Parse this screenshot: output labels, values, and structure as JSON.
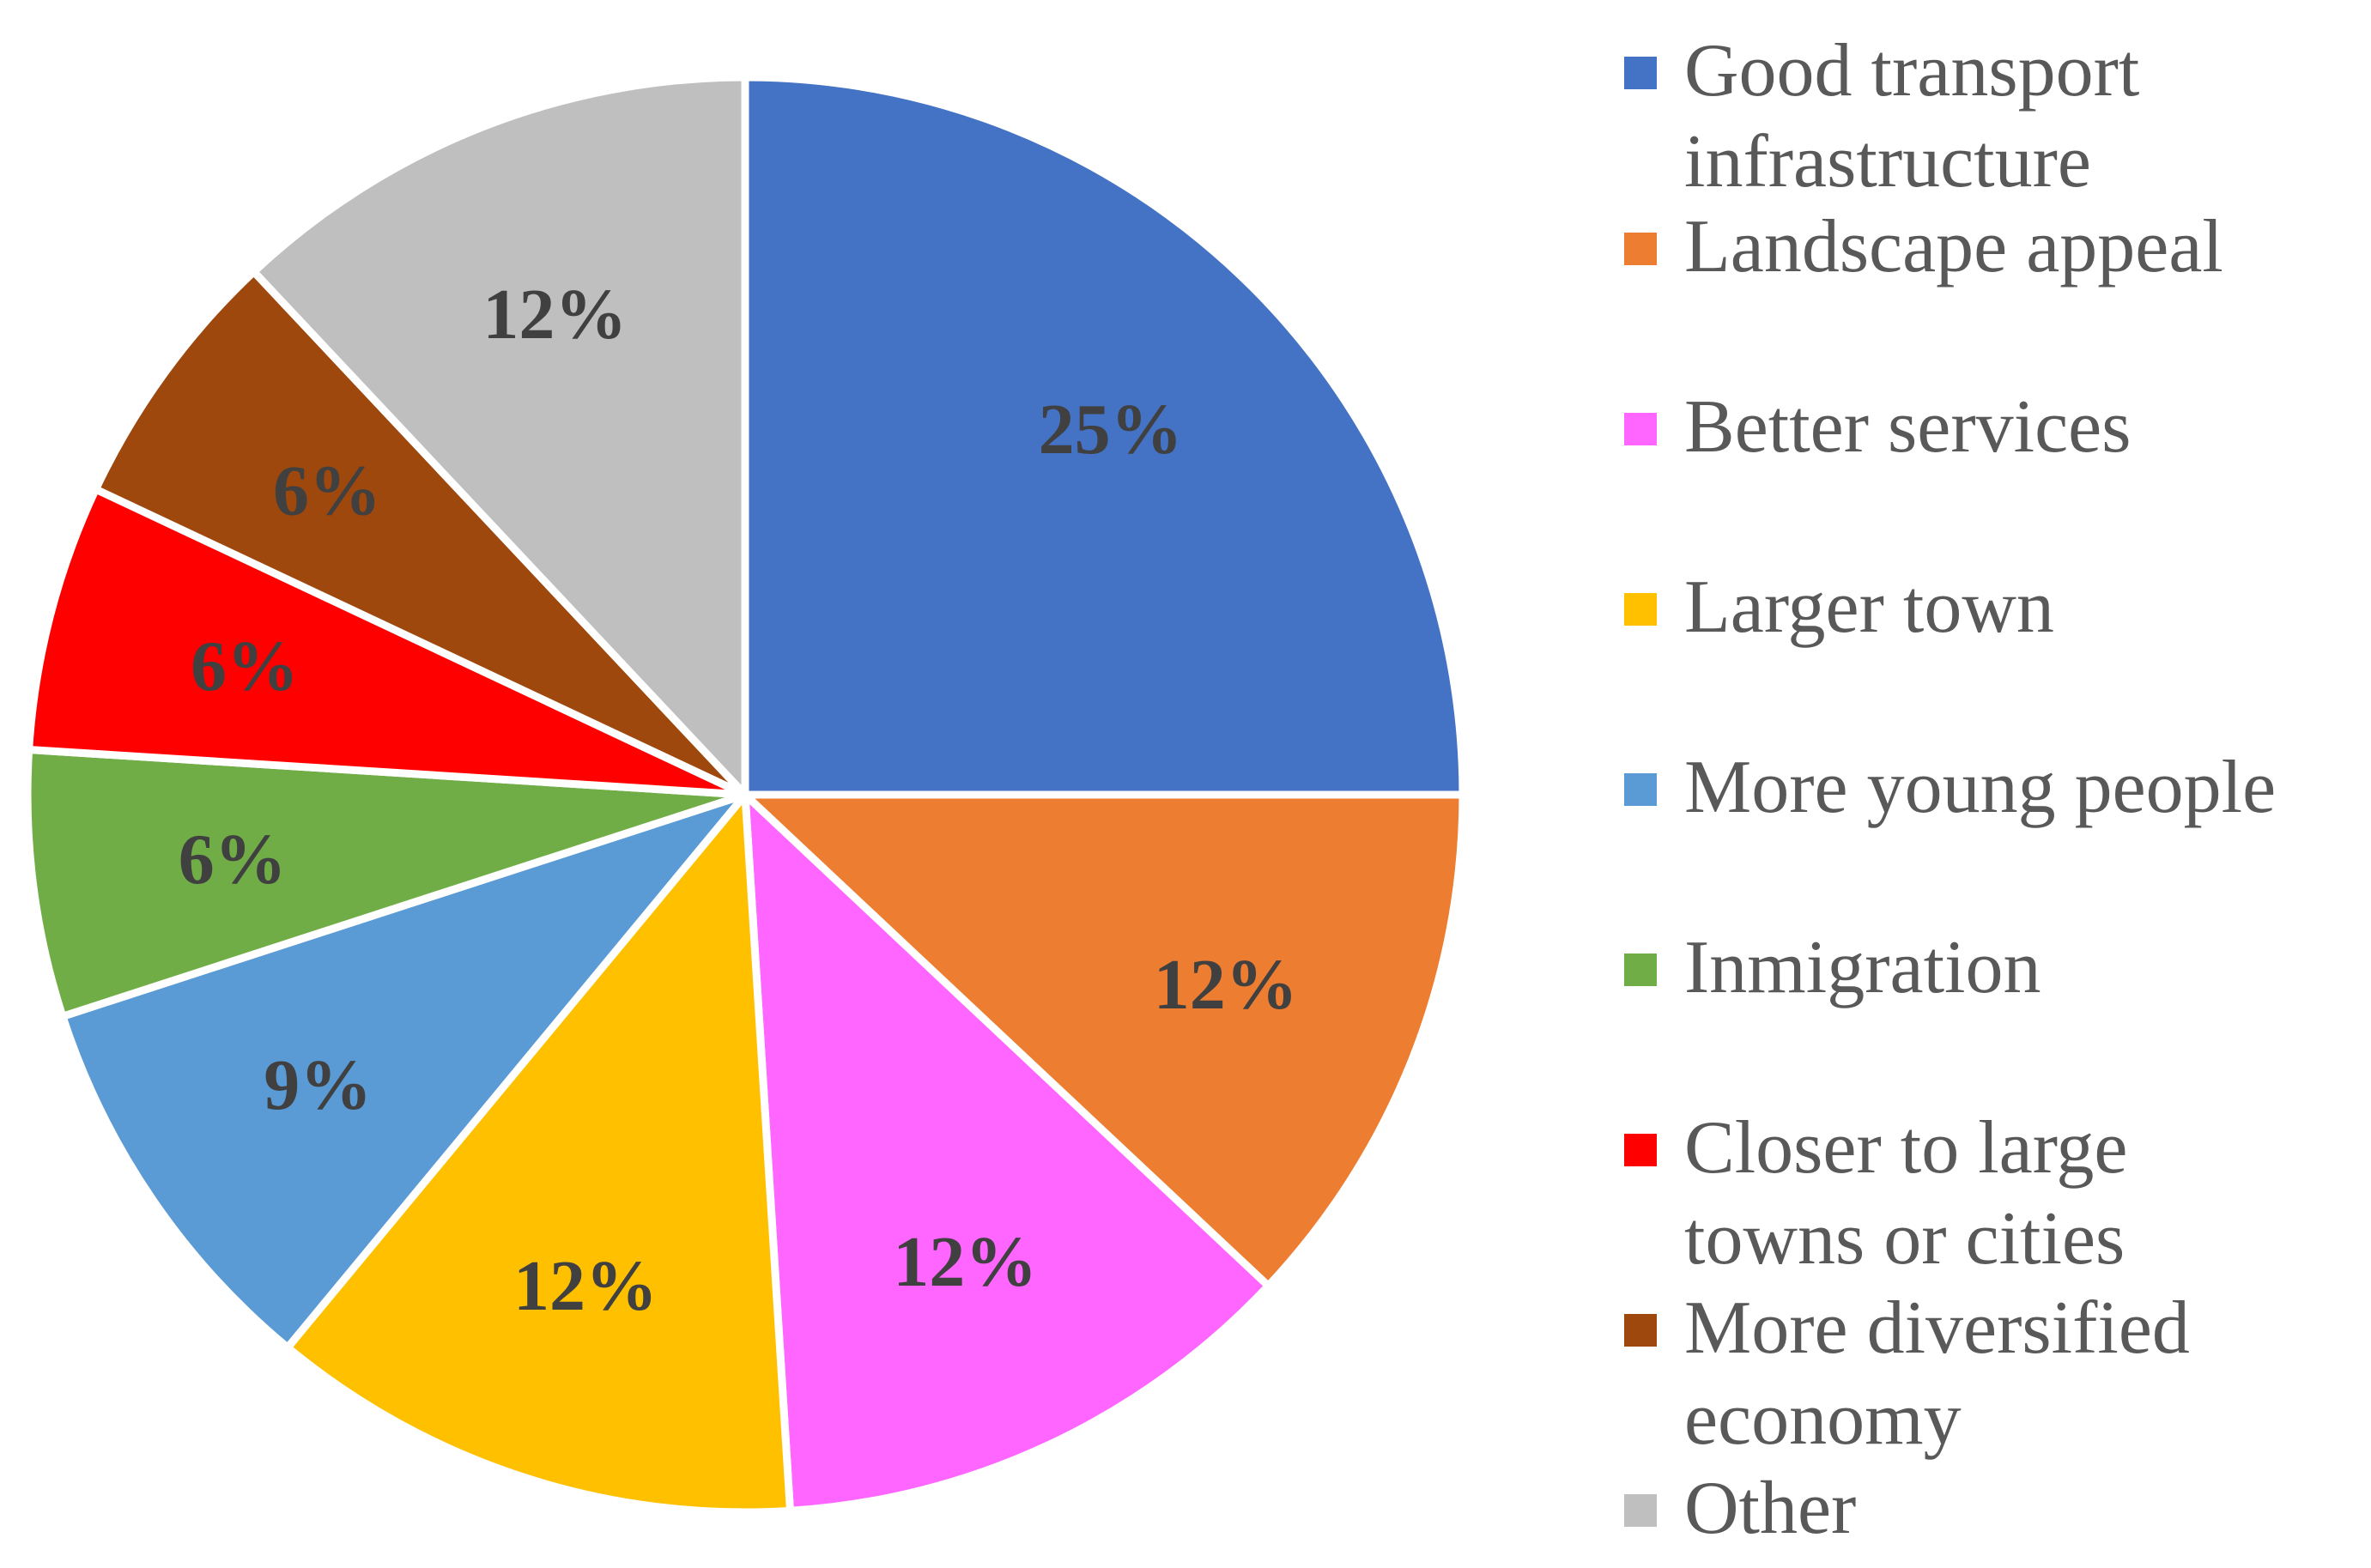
{
  "chart_data": {
    "type": "pie",
    "title": "",
    "label_format": "percent",
    "start_angle_deg": 0,
    "direction": "clockwise",
    "slices": [
      {
        "name": "Good transport infrastructure",
        "legend_label": "Good transport\ninfrastructure",
        "value": 25,
        "label": "25%",
        "color": "#4472C4"
      },
      {
        "name": "Landscape appeal",
        "legend_label": "Landscape appeal",
        "value": 12,
        "label": "12%",
        "color": "#ED7D31"
      },
      {
        "name": "Better services",
        "legend_label": "Better services",
        "value": 12,
        "label": "12%",
        "color": "#FF66FF"
      },
      {
        "name": "Larger town",
        "legend_label": "Larger town",
        "value": 12,
        "label": "12%",
        "color": "#FFC000"
      },
      {
        "name": "More young people",
        "legend_label": "More young people",
        "value": 9,
        "label": "9%",
        "color": "#5B9BD5"
      },
      {
        "name": "Inmigration",
        "legend_label": "Inmigration",
        "value": 6,
        "label": "6%",
        "color": "#70AD47"
      },
      {
        "name": "Closer to large towns or cities",
        "legend_label": "Closer to large\ntowns or cities",
        "value": 6,
        "label": "6%",
        "color": "#FF0000"
      },
      {
        "name": "More diversified economy",
        "legend_label": "More diversified\neconomy",
        "value": 6,
        "label": "6%",
        "color": "#9E480E"
      },
      {
        "name": "Other",
        "legend_label": "Other",
        "value": 12,
        "label": "12%",
        "color": "#BFBFBF"
      }
    ],
    "legend_position": "right"
  }
}
